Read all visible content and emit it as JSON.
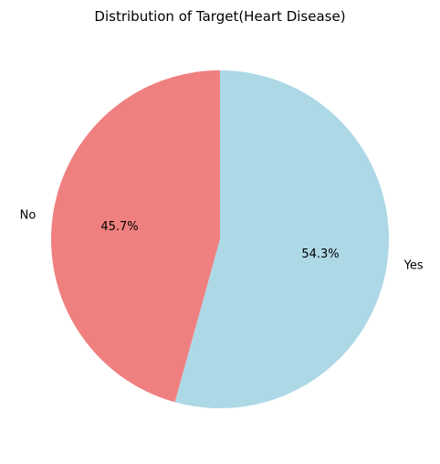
{
  "chart_data": {
    "type": "pie",
    "title": "Distribution of Target(Heart Disease)",
    "slices": [
      {
        "label": "No",
        "value": 45.7,
        "pct_label": "45.7%",
        "color": "#f08080"
      },
      {
        "label": "Yes",
        "value": 54.3,
        "pct_label": "54.3%",
        "color": "#add8e6"
      }
    ],
    "start_angle_deg": 90,
    "direction": "counterclockwise"
  }
}
